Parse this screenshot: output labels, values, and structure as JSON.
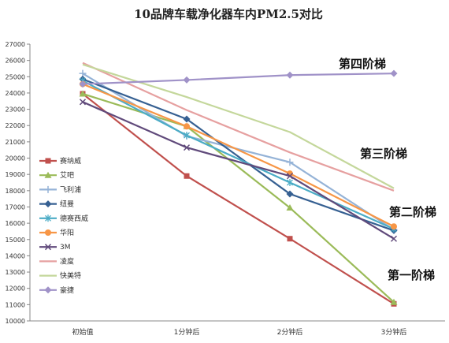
{
  "chart_data": {
    "type": "line",
    "title": "10品牌车载净化器车内PM2.5对比",
    "xlabel": "",
    "ylabel": "",
    "categories": [
      "初始值",
      "1分钟后",
      "2分钟后",
      "3分钟后"
    ],
    "ylim": [
      10000,
      27000
    ],
    "ytick_step": 1000,
    "grid": false,
    "legend_position": "left",
    "series": [
      {
        "name": "赛纳威",
        "values": [
          23950,
          18900,
          15050,
          11050
        ],
        "color": "#C0504D",
        "marker": "square"
      },
      {
        "name": "艾吧",
        "values": [
          23950,
          21950,
          16950,
          11150
        ],
        "color": "#9BBB59",
        "marker": "triangle"
      },
      {
        "name": "飞利浦",
        "values": [
          25200,
          21350,
          19750,
          15600
        ],
        "color": "#95B3D7",
        "marker": "cross"
      },
      {
        "name": "纽曼",
        "values": [
          24850,
          22400,
          17800,
          15550
        ],
        "color": "#366092",
        "marker": "diamond"
      },
      {
        "name": "德赛西威",
        "values": [
          24750,
          21400,
          18500,
          15650
        ],
        "color": "#4BACC6",
        "marker": "star"
      },
      {
        "name": "华阳",
        "values": [
          24550,
          21950,
          19050,
          15800
        ],
        "color": "#F79646",
        "marker": "circle"
      },
      {
        "name": "3M",
        "values": [
          23450,
          20650,
          18900,
          15050
        ],
        "color": "#604A7B",
        "marker": "x"
      },
      {
        "name": "凌度",
        "values": [
          25850,
          22950,
          20350,
          18000
        ],
        "color": "#E6A0A0",
        "marker": "none"
      },
      {
        "name": "快美特",
        "values": [
          25750,
          23750,
          21600,
          18150
        ],
        "color": "#C4D79B",
        "marker": "none"
      },
      {
        "name": "豪捷",
        "values": [
          24550,
          24800,
          25100,
          25200
        ],
        "color": "#A092C8",
        "marker": "diamond"
      }
    ],
    "annotations": [
      {
        "text": "第四阶梯"
      },
      {
        "text": "第三阶梯"
      },
      {
        "text": "第二阶梯"
      },
      {
        "text": "第一阶梯"
      }
    ]
  }
}
